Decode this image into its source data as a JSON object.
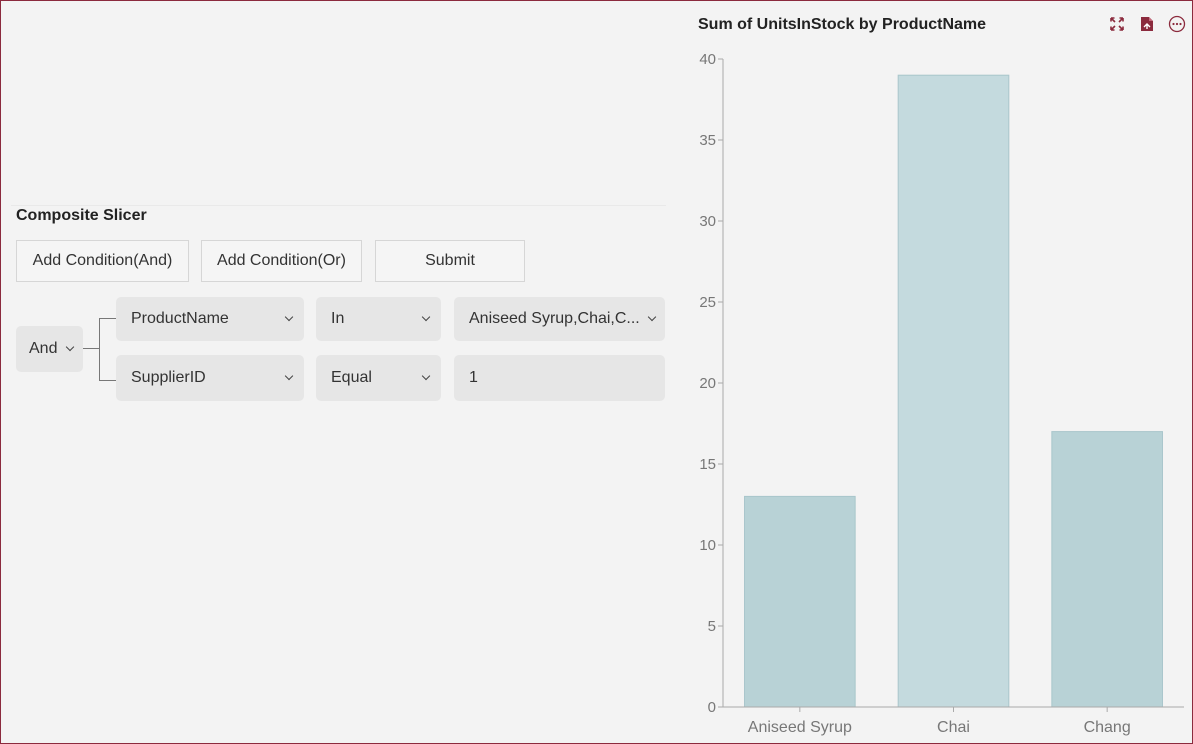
{
  "slicer": {
    "title": "Composite Slicer",
    "buttons": {
      "add_and": "Add Condition(And)",
      "add_or": "Add Condition(Or)",
      "submit": "Submit"
    },
    "logic_operator": "And",
    "conditions": [
      {
        "field": "ProductName",
        "operator": "In",
        "value": "Aniseed Syrup,Chai,C..."
      },
      {
        "field": "SupplierID",
        "operator": "Equal",
        "value": "1"
      }
    ]
  },
  "chart": {
    "toolbar": [
      "expand-icon",
      "export-icon",
      "more-icon"
    ]
  },
  "chart_data": {
    "type": "bar",
    "title": "Sum of UnitsInStock by ProductName",
    "categories": [
      "Aniseed Syrup",
      "Chai",
      "Chang"
    ],
    "values": [
      13,
      39,
      17
    ],
    "xlabel": "",
    "ylabel": "",
    "ylim": [
      0,
      40
    ],
    "yticks": [
      "0",
      "5",
      "10",
      "15",
      "20",
      "25",
      "30",
      "35",
      "40"
    ],
    "colors": [
      "#b8d2d6",
      "#c4dade",
      "#b8d2d6"
    ],
    "grid": false
  }
}
